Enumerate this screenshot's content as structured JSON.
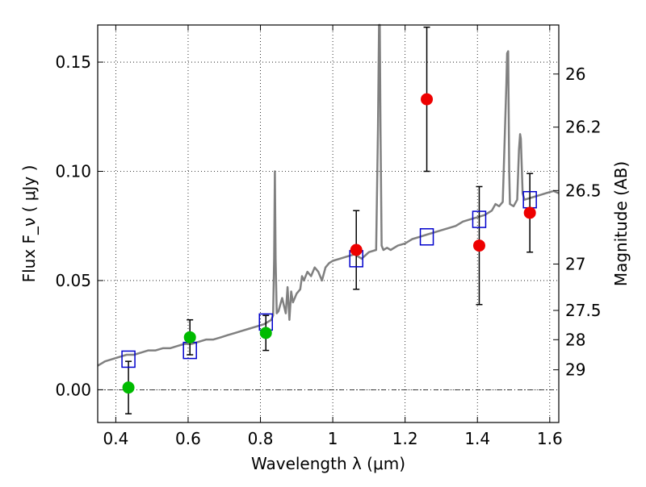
{
  "chart_data": {
    "type": "scatter",
    "xlabel": "Wavelength  λ (μm)",
    "ylabel": "Flux  F_ν  ( μJy )",
    "y2label": "Magnitude (AB)",
    "xlim": [
      0.35,
      1.625
    ],
    "ylim": [
      -0.015,
      0.167
    ],
    "grid": true,
    "x_ticks": [
      0.4,
      0.6,
      0.8,
      1.0,
      1.2,
      1.4,
      1.6
    ],
    "x_tick_labels": [
      "0.4",
      "0.6",
      "0.8",
      "1",
      "1.2",
      "1.4",
      "1.6"
    ],
    "y_ticks": [
      0.0,
      0.05,
      0.1,
      0.15
    ],
    "y_tick_labels": [
      "0.00",
      "0.05",
      "0.10",
      "0.15"
    ],
    "y2_ticks": [
      {
        "label": "26",
        "value": 26.0
      },
      {
        "label": "26.2",
        "value": 26.2
      },
      {
        "label": "26.5",
        "value": 26.5
      },
      {
        "label": "27",
        "value": 27.0
      },
      {
        "label": "27.5",
        "value": 27.5
      },
      {
        "label": "28",
        "value": 28.0
      },
      {
        "label": "29",
        "value": 29.0
      }
    ],
    "colors": {
      "template": "#808080",
      "model_box": "#0000cc",
      "green": "#00bb00",
      "red": "#ee0000"
    },
    "template_spectrum": {
      "x": [
        0.35,
        0.37,
        0.39,
        0.41,
        0.43,
        0.45,
        0.47,
        0.49,
        0.51,
        0.53,
        0.55,
        0.57,
        0.59,
        0.61,
        0.63,
        0.65,
        0.67,
        0.69,
        0.71,
        0.73,
        0.75,
        0.77,
        0.79,
        0.81,
        0.82,
        0.83,
        0.835,
        0.838,
        0.84,
        0.842,
        0.845,
        0.85,
        0.86,
        0.87,
        0.875,
        0.88,
        0.885,
        0.89,
        0.9,
        0.91,
        0.915,
        0.92,
        0.93,
        0.94,
        0.95,
        0.96,
        0.97,
        0.98,
        0.99,
        1.0,
        1.02,
        1.04,
        1.06,
        1.08,
        1.1,
        1.12,
        1.125,
        1.128,
        1.13,
        1.132,
        1.135,
        1.14,
        1.15,
        1.16,
        1.18,
        1.2,
        1.22,
        1.24,
        1.26,
        1.28,
        1.3,
        1.32,
        1.34,
        1.36,
        1.38,
        1.4,
        1.42,
        1.44,
        1.45,
        1.46,
        1.47,
        1.48,
        1.482,
        1.485,
        1.488,
        1.49,
        1.5,
        1.51,
        1.515,
        1.518,
        1.52,
        1.525,
        1.53,
        1.55,
        1.57,
        1.59,
        1.61,
        1.625
      ],
      "y": [
        0.011,
        0.013,
        0.014,
        0.015,
        0.016,
        0.016,
        0.017,
        0.018,
        0.018,
        0.019,
        0.019,
        0.02,
        0.021,
        0.021,
        0.022,
        0.023,
        0.023,
        0.024,
        0.025,
        0.026,
        0.027,
        0.028,
        0.029,
        0.03,
        0.031,
        0.032,
        0.034,
        0.06,
        0.1,
        0.06,
        0.035,
        0.036,
        0.042,
        0.035,
        0.047,
        0.032,
        0.045,
        0.04,
        0.044,
        0.046,
        0.052,
        0.05,
        0.054,
        0.052,
        0.056,
        0.054,
        0.05,
        0.056,
        0.058,
        0.059,
        0.06,
        0.061,
        0.062,
        0.06,
        0.063,
        0.064,
        0.12,
        0.167,
        0.167,
        0.12,
        0.066,
        0.064,
        0.065,
        0.064,
        0.066,
        0.067,
        0.069,
        0.07,
        0.071,
        0.072,
        0.073,
        0.074,
        0.075,
        0.077,
        0.078,
        0.079,
        0.08,
        0.082,
        0.085,
        0.084,
        0.086,
        0.14,
        0.154,
        0.155,
        0.1,
        0.085,
        0.084,
        0.087,
        0.11,
        0.117,
        0.115,
        0.09,
        0.087,
        0.088,
        0.089,
        0.09,
        0.091,
        0.09
      ]
    },
    "series": [
      {
        "marker": "square",
        "color": "#0000cc",
        "x": [
          0.435,
          0.605,
          0.815,
          1.065,
          1.26,
          1.405,
          1.545
        ],
        "y": [
          0.014,
          0.018,
          0.031,
          0.06,
          0.07,
          0.078,
          0.087
        ]
      },
      {
        "marker": "circle",
        "color": "#00bb00",
        "x": [
          0.435,
          0.605,
          0.815
        ],
        "y": [
          0.001,
          0.024,
          0.026
        ],
        "err": [
          0.012,
          0.008,
          0.008
        ]
      },
      {
        "marker": "circle",
        "color": "#ee0000",
        "x": [
          1.065,
          1.26,
          1.405,
          1.545
        ],
        "y": [
          0.064,
          0.133,
          0.066,
          0.081
        ],
        "err": [
          0.018,
          0.033,
          0.027,
          0.018
        ]
      }
    ]
  }
}
